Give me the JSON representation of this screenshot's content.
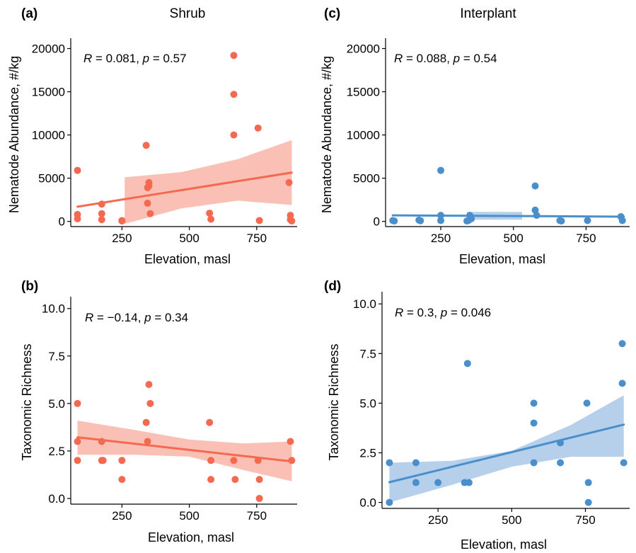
{
  "colors": {
    "shrub": "#F4694F",
    "interplant": "#4A8FCC",
    "shrub_band": "#F9B5A8",
    "interplant_band": "#A9C8E8"
  },
  "chart_data": [
    {
      "type": "scatter",
      "panel": "(a)",
      "title": "Shrub",
      "xlabel": "Elevation, masl",
      "ylabel": "Nematode Abundance, #/kg",
      "xticks": [
        "250",
        "500",
        "750"
      ],
      "yticks": [
        "0",
        "5000",
        "10000",
        "15000",
        "20000"
      ],
      "xlim": [
        60,
        900
      ],
      "ylim": [
        -600,
        20700
      ],
      "stat": {
        "r_value": "0.081",
        "p_value": "0.57"
      },
      "regression": {
        "x": [
          85,
          880
        ],
        "y": [
          1700,
          5650
        ]
      },
      "band": {
        "x": [
          260,
          470,
          680,
          880
        ],
        "lo": [
          -300,
          1500,
          2400,
          1900
        ],
        "hi": [
          5100,
          5700,
          7200,
          9400
        ]
      },
      "points": [
        [
          85,
          5900
        ],
        [
          85,
          800
        ],
        [
          85,
          300
        ],
        [
          175,
          2000
        ],
        [
          175,
          900
        ],
        [
          175,
          200
        ],
        [
          250,
          100
        ],
        [
          250,
          50
        ],
        [
          340,
          8800
        ],
        [
          345,
          3900
        ],
        [
          350,
          4500
        ],
        [
          350,
          4100
        ],
        [
          345,
          2100
        ],
        [
          355,
          900
        ],
        [
          575,
          950
        ],
        [
          580,
          250
        ],
        [
          665,
          19200
        ],
        [
          665,
          14700
        ],
        [
          665,
          10000
        ],
        [
          755,
          10800
        ],
        [
          760,
          100
        ],
        [
          870,
          4500
        ],
        [
          875,
          700
        ],
        [
          875,
          200
        ],
        [
          880,
          50
        ]
      ]
    },
    {
      "type": "scatter",
      "panel": "(c)",
      "title": "Interplant",
      "xlabel": "Elevation, masl",
      "ylabel": "Nematode Abundance, #/kg",
      "xticks": [
        "250",
        "500",
        "750"
      ],
      "yticks": [
        "0",
        "5000",
        "10000",
        "15000",
        "20000"
      ],
      "xlim": [
        60,
        900
      ],
      "ylim": [
        -600,
        20700
      ],
      "stat": {
        "r_value": "0.088",
        "p_value": "0.54"
      },
      "regression": {
        "x": [
          85,
          880
        ],
        "y": [
          700,
          550
        ]
      },
      "band": {
        "x": [
          340,
          530
        ],
        "lo": [
          200,
          200
        ],
        "hi": [
          1100,
          1100
        ]
      },
      "points": [
        [
          85,
          100
        ],
        [
          90,
          50
        ],
        [
          175,
          150
        ],
        [
          180,
          80
        ],
        [
          250,
          5900
        ],
        [
          250,
          700
        ],
        [
          250,
          100
        ],
        [
          340,
          50
        ],
        [
          345,
          100
        ],
        [
          350,
          700
        ],
        [
          355,
          300
        ],
        [
          575,
          4100
        ],
        [
          575,
          1300
        ],
        [
          580,
          700
        ],
        [
          660,
          100
        ],
        [
          665,
          50
        ],
        [
          755,
          100
        ],
        [
          870,
          550
        ],
        [
          875,
          100
        ]
      ]
    },
    {
      "type": "scatter",
      "panel": "(b)",
      "title": "",
      "xlabel": "Elevation, masl",
      "ylabel": "Taxonomic Richness",
      "xticks": [
        "250",
        "500",
        "750"
      ],
      "yticks": [
        "0.0",
        "2.5",
        "5.0",
        "7.5",
        "10.0"
      ],
      "xlim": [
        60,
        900
      ],
      "ylim": [
        -0.3,
        10.4
      ],
      "stat": {
        "r_value": "0.14",
        "r_sign": "−",
        "p_value": "0.34"
      },
      "regression": {
        "x": [
          85,
          880
        ],
        "y": [
          3.22,
          1.95
        ]
      },
      "band": {
        "x": [
          85,
          300,
          500,
          700,
          880
        ],
        "lo": [
          2.3,
          2.3,
          2.2,
          1.5,
          0.9
        ],
        "hi": [
          4.1,
          3.6,
          3.1,
          2.9,
          3.0
        ]
      },
      "points": [
        [
          85,
          5
        ],
        [
          85,
          3
        ],
        [
          85,
          2
        ],
        [
          175,
          3
        ],
        [
          175,
          2
        ],
        [
          180,
          2
        ],
        [
          250,
          2
        ],
        [
          250,
          1
        ],
        [
          340,
          4
        ],
        [
          345,
          3
        ],
        [
          350,
          6
        ],
        [
          355,
          5
        ],
        [
          575,
          4
        ],
        [
          580,
          2
        ],
        [
          580,
          1
        ],
        [
          665,
          2
        ],
        [
          670,
          1
        ],
        [
          755,
          2
        ],
        [
          760,
          1
        ],
        [
          760,
          0
        ],
        [
          875,
          3
        ],
        [
          880,
          2
        ]
      ]
    },
    {
      "type": "scatter",
      "panel": "(d)",
      "title": "",
      "xlabel": "Elevation, masl",
      "ylabel": "Taxonomic Richness",
      "xticks": [
        "250",
        "500",
        "750"
      ],
      "yticks": [
        "0.0",
        "2.5",
        "5.0",
        "7.5",
        "10.0"
      ],
      "xlim": [
        60,
        900
      ],
      "ylim": [
        -0.3,
        10.4
      ],
      "stat": {
        "r_value": "0.3",
        "p_value": "0.046"
      },
      "regression": {
        "x": [
          85,
          880
        ],
        "y": [
          1.02,
          3.92
        ]
      },
      "band": {
        "x": [
          85,
          300,
          500,
          700,
          880
        ],
        "lo": [
          0.0,
          0.9,
          1.8,
          2.3,
          2.3
        ],
        "hi": [
          2.0,
          2.1,
          2.6,
          3.9,
          5.4
        ]
      },
      "points": [
        [
          85,
          2
        ],
        [
          85,
          0
        ],
        [
          175,
          2
        ],
        [
          175,
          1
        ],
        [
          250,
          1
        ],
        [
          340,
          1
        ],
        [
          350,
          7
        ],
        [
          355,
          1
        ],
        [
          575,
          5
        ],
        [
          575,
          4
        ],
        [
          575,
          2
        ],
        [
          665,
          3
        ],
        [
          665,
          2
        ],
        [
          755,
          5
        ],
        [
          760,
          1
        ],
        [
          760,
          0
        ],
        [
          875,
          8
        ],
        [
          875,
          6
        ],
        [
          880,
          2
        ]
      ]
    }
  ]
}
